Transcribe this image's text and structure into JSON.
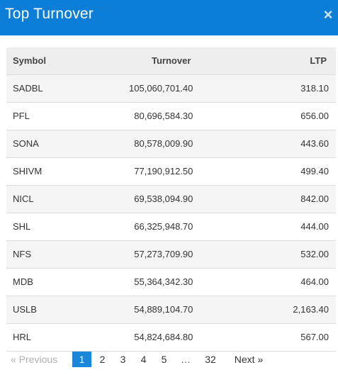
{
  "header": {
    "title": "Top Turnover",
    "close_glyph": "×"
  },
  "table": {
    "columns": {
      "symbol": "Symbol",
      "turnover": "Turnover",
      "ltp": "LTP"
    },
    "rows": [
      {
        "symbol": "SADBL",
        "turnover": "105,060,701.40",
        "ltp": "318.10"
      },
      {
        "symbol": "PFL",
        "turnover": "80,696,584.30",
        "ltp": "656.00"
      },
      {
        "symbol": "SONA",
        "turnover": "80,578,009.90",
        "ltp": "443.60"
      },
      {
        "symbol": "SHIVM",
        "turnover": "77,190,912.50",
        "ltp": "499.40"
      },
      {
        "symbol": "NICL",
        "turnover": "69,538,094.90",
        "ltp": "842.00"
      },
      {
        "symbol": "SHL",
        "turnover": "66,325,948.70",
        "ltp": "444.00"
      },
      {
        "symbol": "NFS",
        "turnover": "57,273,709.90",
        "ltp": "532.00"
      },
      {
        "symbol": "MDB",
        "turnover": "55,364,342.30",
        "ltp": "464.00"
      },
      {
        "symbol": "USLB",
        "turnover": "54,889,104.70",
        "ltp": "2,163.40"
      },
      {
        "symbol": "HRL",
        "turnover": "54,824,684.80",
        "ltp": "567.00"
      }
    ]
  },
  "pagination": {
    "previous_label": "« Previous",
    "pages": [
      "1",
      "2",
      "3",
      "4",
      "5"
    ],
    "active_page": "1",
    "ellipsis": "…",
    "last_page": "32",
    "next_label": "Next »"
  },
  "colors": {
    "header_bg": "#0c7ed8",
    "active_page_bg": "#1a86d9"
  }
}
